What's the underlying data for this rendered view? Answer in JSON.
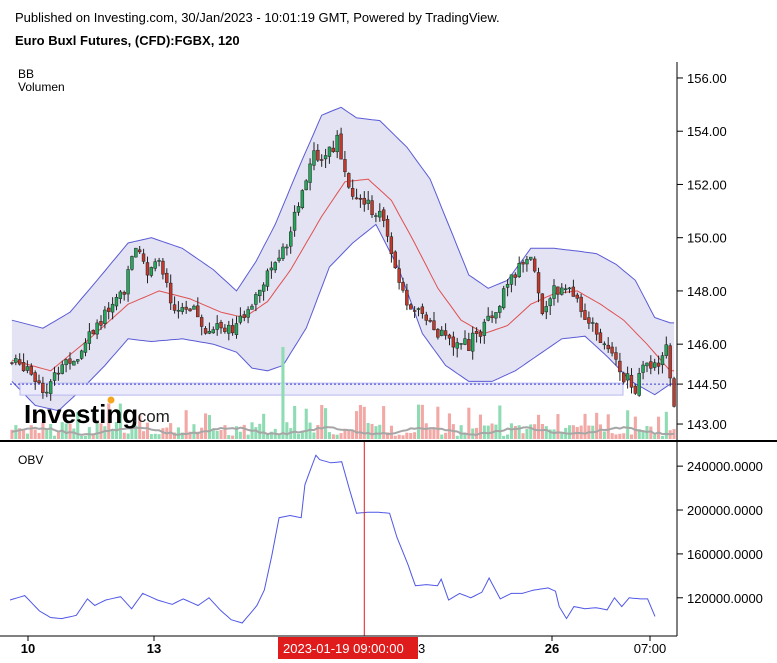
{
  "header": {
    "published": "Published on Investing.com, 30/Jan/2023 - 10:01:19 GMT, Powered by TradingView.",
    "symbol": "Euro Buxl Futures, (CFD):FGBX, 120"
  },
  "watermark": {
    "brand": "Investing",
    "suffix": ".com"
  },
  "price_pane": {
    "legend": [
      "BB",
      "Volumen"
    ],
    "current_price_tag": "144.50"
  },
  "obv_pane": {
    "legend": "OBV"
  },
  "crosshair": {
    "time_label": "2023-01-19 09:00:00",
    "time_label_suffix": "3"
  },
  "colors": {
    "up": "#26a65b",
    "down": "#c0392b",
    "band": "#5b5bd6",
    "band_fill": "#e3e3f3",
    "basis": "#e05050",
    "obv": "#4f57e6",
    "vol_up": "#8fdcb4",
    "vol_down": "#f2a9a6",
    "vol_ma": "#a6a6a6",
    "crosshair": "#e01b1b",
    "level": "#b8b8ee"
  },
  "chart_data": [
    {
      "type": "candlestick",
      "title": "Euro Buxl Futures, (CFD):FGBX, 120",
      "indicators": [
        "BB",
        "Volumen"
      ],
      "x_tick_labels": [
        "10",
        "13",
        "26",
        "07:00"
      ],
      "y_tick_labels": [
        "156.00",
        "154.00",
        "152.00",
        "150.00",
        "148.00",
        "146.00",
        "144.50",
        "143.00"
      ],
      "ylim": [
        142.4,
        156.6
      ],
      "close_anchors": [
        [
          0,
          145.3
        ],
        [
          4,
          145.2
        ],
        [
          9,
          144.2
        ],
        [
          13,
          145.3
        ],
        [
          17,
          145.6
        ],
        [
          21,
          146.6
        ],
        [
          25,
          147.2
        ],
        [
          29,
          148.1
        ],
        [
          32,
          149.6
        ],
        [
          35,
          148.6
        ],
        [
          38,
          149.0
        ],
        [
          42,
          147.3
        ],
        [
          46,
          147.5
        ],
        [
          50,
          146.3
        ],
        [
          53,
          146.8
        ],
        [
          56,
          146.6
        ],
        [
          60,
          146.9
        ],
        [
          63,
          148.0
        ],
        [
          66,
          148.7
        ],
        [
          69,
          149.1
        ],
        [
          72,
          150.3
        ],
        [
          75,
          151.9
        ],
        [
          78,
          153.2
        ],
        [
          81,
          152.9
        ],
        [
          84,
          153.7
        ],
        [
          87,
          152.0
        ],
        [
          90,
          151.4
        ],
        [
          93,
          151.1
        ],
        [
          96,
          150.8
        ],
        [
          99,
          148.7
        ],
        [
          102,
          147.6
        ],
        [
          105,
          147.1
        ],
        [
          108,
          146.9
        ],
        [
          111,
          146.3
        ],
        [
          114,
          145.9
        ],
        [
          118,
          146.0
        ],
        [
          122,
          146.7
        ],
        [
          125,
          147.4
        ],
        [
          128,
          148.1
        ],
        [
          131,
          148.9
        ],
        [
          134,
          149.4
        ],
        [
          137,
          147.3
        ],
        [
          140,
          148.1
        ],
        [
          143,
          148.0
        ],
        [
          146,
          147.7
        ],
        [
          149,
          146.9
        ],
        [
          152,
          146.0
        ],
        [
          155,
          145.9
        ],
        [
          158,
          144.8
        ],
        [
          161,
          144.4
        ],
        [
          164,
          145.3
        ],
        [
          167,
          145.4
        ],
        [
          169,
          145.9
        ],
        [
          171,
          143.8
        ]
      ],
      "bb_upper_anchors": [
        [
          0,
          146.9
        ],
        [
          8,
          146.6
        ],
        [
          15,
          147.2
        ],
        [
          22,
          148.4
        ],
        [
          30,
          149.8
        ],
        [
          36,
          150.0
        ],
        [
          44,
          149.6
        ],
        [
          52,
          148.8
        ],
        [
          58,
          148.0
        ],
        [
          63,
          149.1
        ],
        [
          68,
          150.5
        ],
        [
          74,
          152.6
        ],
        [
          80,
          154.6
        ],
        [
          85,
          154.9
        ],
        [
          89,
          154.5
        ],
        [
          95,
          154.4
        ],
        [
          102,
          153.4
        ],
        [
          108,
          152.2
        ],
        [
          113,
          150.4
        ],
        [
          118,
          148.6
        ],
        [
          123,
          148.1
        ],
        [
          128,
          148.4
        ],
        [
          134,
          149.6
        ],
        [
          140,
          149.6
        ],
        [
          146,
          149.5
        ],
        [
          151,
          149.4
        ],
        [
          156,
          149.0
        ],
        [
          161,
          148.4
        ],
        [
          166,
          147.0
        ],
        [
          170,
          146.8
        ]
      ],
      "bb_basis_anchors": [
        [
          0,
          145.4
        ],
        [
          10,
          145.0
        ],
        [
          20,
          146.2
        ],
        [
          30,
          147.5
        ],
        [
          38,
          148.0
        ],
        [
          46,
          147.7
        ],
        [
          54,
          147.2
        ],
        [
          60,
          147.0
        ],
        [
          66,
          147.6
        ],
        [
          72,
          148.8
        ],
        [
          80,
          150.8
        ],
        [
          86,
          152.1
        ],
        [
          92,
          152.2
        ],
        [
          98,
          151.4
        ],
        [
          104,
          149.8
        ],
        [
          110,
          148.1
        ],
        [
          116,
          146.9
        ],
        [
          122,
          146.4
        ],
        [
          128,
          146.7
        ],
        [
          134,
          147.5
        ],
        [
          140,
          147.9
        ],
        [
          146,
          148.0
        ],
        [
          152,
          147.5
        ],
        [
          158,
          146.9
        ],
        [
          164,
          146.0
        ],
        [
          170,
          145.0
        ]
      ],
      "bb_lower_anchors": [
        [
          0,
          144.6
        ],
        [
          6,
          143.7
        ],
        [
          12,
          143.5
        ],
        [
          18,
          144.3
        ],
        [
          24,
          145.2
        ],
        [
          30,
          146.2
        ],
        [
          36,
          146.1
        ],
        [
          44,
          146.2
        ],
        [
          52,
          146.0
        ],
        [
          58,
          145.7
        ],
        [
          62,
          145.1
        ],
        [
          66,
          145.0
        ],
        [
          70,
          145.2
        ],
        [
          76,
          146.6
        ],
        [
          82,
          148.9
        ],
        [
          88,
          149.8
        ],
        [
          94,
          150.5
        ],
        [
          100,
          148.8
        ],
        [
          106,
          146.4
        ],
        [
          112,
          145.2
        ],
        [
          118,
          144.6
        ],
        [
          124,
          144.6
        ],
        [
          130,
          145.0
        ],
        [
          136,
          145.6
        ],
        [
          142,
          146.2
        ],
        [
          148,
          146.3
        ],
        [
          154,
          145.5
        ],
        [
          160,
          144.6
        ],
        [
          166,
          144.1
        ],
        [
          170,
          144.5
        ]
      ],
      "crosshair_bar_index": 91,
      "horizontal_level": 144.5
    },
    {
      "type": "line",
      "title": "OBV",
      "y_tick_labels": [
        "240000.0000",
        "200000.0000",
        "160000.0000",
        "120000.0000"
      ],
      "ylim": [
        87000,
        262000
      ],
      "obv_anchors": [
        [
          0,
          118000
        ],
        [
          4,
          122000
        ],
        [
          8,
          108000
        ],
        [
          11,
          102000
        ],
        [
          14,
          101000
        ],
        [
          18,
          104000
        ],
        [
          21,
          119000
        ],
        [
          23,
          113000
        ],
        [
          26,
          118000
        ],
        [
          30,
          121000
        ],
        [
          33,
          110000
        ],
        [
          36,
          124000
        ],
        [
          40,
          118000
        ],
        [
          44,
          114000
        ],
        [
          47,
          119000
        ],
        [
          51,
          113000
        ],
        [
          54,
          120000
        ],
        [
          57,
          109000
        ],
        [
          60,
          100000
        ],
        [
          63,
          97000
        ],
        [
          67,
          113000
        ],
        [
          69,
          127000
        ],
        [
          71,
          158000
        ],
        [
          73,
          193000
        ],
        [
          76,
          195000
        ],
        [
          79,
          193000
        ],
        [
          80,
          223000
        ],
        [
          83,
          250000
        ],
        [
          84,
          246000
        ],
        [
          87,
          243000
        ],
        [
          90,
          244000
        ],
        [
          92,
          220000
        ],
        [
          94,
          197000
        ],
        [
          97,
          198000
        ],
        [
          100,
          198000
        ],
        [
          103,
          197000
        ],
        [
          105,
          175000
        ],
        [
          108,
          150000
        ],
        [
          110,
          131000
        ],
        [
          113,
          132000
        ],
        [
          116,
          131000
        ],
        [
          117,
          137000
        ],
        [
          119,
          118000
        ],
        [
          122,
          124000
        ],
        [
          125,
          120000
        ],
        [
          128,
          125000
        ],
        [
          130,
          138000
        ],
        [
          133,
          119000
        ],
        [
          136,
          124000
        ],
        [
          139,
          124000
        ],
        [
          142,
          127000
        ],
        [
          144,
          128000
        ],
        [
          146,
          129000
        ],
        [
          148,
          126000
        ],
        [
          149,
          112000
        ],
        [
          151,
          101000
        ],
        [
          153,
          112000
        ],
        [
          156,
          110000
        ],
        [
          159,
          111000
        ],
        [
          162,
          109000
        ],
        [
          164,
          120000
        ],
        [
          166,
          112000
        ],
        [
          168,
          120000
        ],
        [
          171,
          119000
        ],
        [
          173,
          119000
        ],
        [
          175,
          103000
        ]
      ]
    }
  ]
}
